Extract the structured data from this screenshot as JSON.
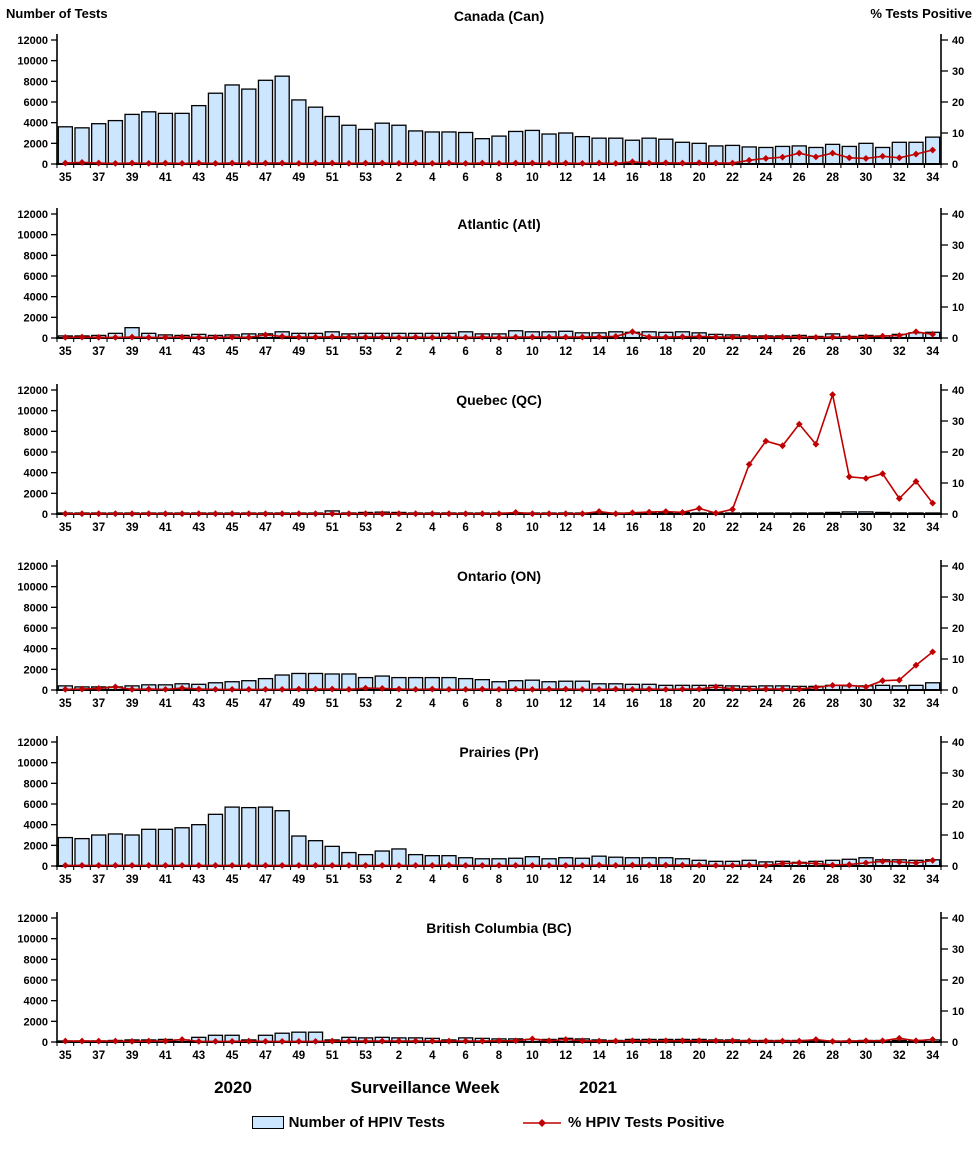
{
  "header": {
    "left_axis_label": "Number of Tests",
    "right_axis_label": "%  Tests Positive"
  },
  "footer": {
    "year_left": "2020",
    "xaxis_label": "Surveillance Week",
    "year_right": "2021"
  },
  "legend": {
    "bars_label": "Number of HPIV Tests",
    "line_label": "% HPIV Tests Positive"
  },
  "colors": {
    "bar_fill": "#CCE6FF",
    "bar_stroke": "#000000",
    "line_color": "#C00000"
  },
  "chart_data": {
    "type": "bar",
    "subtype": "dual-axis bar+line small multiples",
    "title": "HPIV tests and percent positive by surveillance week, Canada and regions, 2020-2021",
    "xlabel": "Surveillance Week",
    "ylabel_left": "Number of Tests",
    "ylabel_right": "% Tests Positive",
    "grid": false,
    "legend_position": "bottom",
    "left_axis": {
      "min": 0,
      "max": 12000,
      "step": 2000,
      "ticks": [
        0,
        2000,
        4000,
        6000,
        8000,
        10000,
        12000
      ]
    },
    "right_axis": {
      "min": 0,
      "max": 40,
      "step": 10,
      "ticks": [
        0,
        10,
        20,
        30,
        40
      ]
    },
    "x_categories": [
      "35",
      "36",
      "37",
      "38",
      "39",
      "40",
      "41",
      "42",
      "43",
      "44",
      "45",
      "46",
      "47",
      "48",
      "49",
      "50",
      "51",
      "52",
      "53",
      "1",
      "2",
      "3",
      "4",
      "5",
      "6",
      "7",
      "8",
      "9",
      "10",
      "11",
      "12",
      "13",
      "14",
      "15",
      "16",
      "17",
      "18",
      "19",
      "20",
      "21",
      "22",
      "23",
      "24",
      "25",
      "26",
      "27",
      "28",
      "29",
      "30",
      "31",
      "32",
      "33",
      "34"
    ],
    "x_tick_labels_shown": [
      "35",
      "37",
      "39",
      "41",
      "43",
      "45",
      "47",
      "49",
      "51",
      "53",
      "2",
      "4",
      "6",
      "8",
      "10",
      "12",
      "14",
      "16",
      "18",
      "20",
      "22",
      "24",
      "26",
      "28",
      "30",
      "32",
      "34"
    ],
    "panels": [
      {
        "title": "Canada (Can)",
        "tests": [
          3600,
          3500,
          3900,
          4200,
          4800,
          5050,
          4900,
          4900,
          5650,
          6850,
          7650,
          7250,
          8100,
          8500,
          6200,
          5500,
          4600,
          3750,
          3350,
          3950,
          3750,
          3200,
          3100,
          3100,
          3050,
          2450,
          2700,
          3150,
          3250,
          2900,
          3000,
          2650,
          2500,
          2500,
          2300,
          2500,
          2400,
          2100,
          2000,
          1750,
          1800,
          1650,
          1600,
          1700,
          1750,
          1600,
          1900,
          1700,
          2000,
          1600,
          2100,
          2100,
          2600
        ],
        "pct_positive": [
          0.3,
          0.5,
          0.3,
          0.2,
          0.3,
          0.2,
          0.3,
          0.2,
          0.3,
          0.2,
          0.3,
          0.2,
          0.3,
          0.3,
          0.2,
          0.3,
          0.3,
          0.2,
          0.3,
          0.3,
          0.2,
          0.3,
          0.2,
          0.3,
          0.2,
          0.3,
          0.2,
          0.3,
          0.3,
          0.2,
          0.3,
          0.2,
          0.3,
          0.2,
          0.7,
          0.3,
          0.4,
          0.3,
          0.4,
          0.3,
          0.3,
          1.2,
          1.8,
          2.2,
          3.5,
          2.3,
          3.5,
          2.0,
          1.8,
          2.5,
          2.0,
          3.2,
          4.5
        ]
      },
      {
        "title": "Atlantic (Atl)",
        "tests": [
          200,
          200,
          250,
          450,
          1000,
          450,
          300,
          250,
          350,
          250,
          300,
          400,
          400,
          600,
          450,
          450,
          600,
          400,
          450,
          450,
          450,
          450,
          450,
          450,
          600,
          400,
          400,
          700,
          600,
          600,
          650,
          500,
          500,
          600,
          550,
          600,
          550,
          600,
          500,
          350,
          300,
          200,
          200,
          200,
          250,
          150,
          400,
          150,
          250,
          200,
          350,
          500,
          550
        ],
        "pct_positive": [
          0.2,
          0.3,
          0.2,
          0.2,
          0.3,
          0.2,
          0.2,
          0.3,
          0.2,
          0.2,
          0.3,
          0.2,
          1.0,
          0.5,
          0.3,
          0.3,
          0.4,
          0.3,
          0.3,
          0.3,
          0.2,
          0.3,
          0.2,
          0.3,
          0.2,
          0.3,
          0.2,
          0.3,
          0.3,
          0.3,
          0.3,
          0.3,
          0.4,
          0.5,
          2.0,
          0.3,
          0.3,
          0.4,
          0.5,
          0.3,
          0.3,
          0.3,
          0.3,
          0.3,
          0.3,
          0.2,
          0.3,
          0.2,
          0.4,
          0.6,
          0.8,
          2.0,
          1.2
        ]
      },
      {
        "title": "Quebec (QC)",
        "tests": [
          80,
          80,
          80,
          80,
          100,
          80,
          80,
          80,
          100,
          80,
          80,
          80,
          100,
          100,
          80,
          80,
          300,
          100,
          150,
          180,
          150,
          100,
          100,
          100,
          100,
          80,
          80,
          100,
          80,
          80,
          100,
          80,
          100,
          80,
          80,
          100,
          100,
          150,
          100,
          80,
          80,
          80,
          80,
          80,
          80,
          100,
          150,
          200,
          200,
          150,
          100,
          100,
          80
        ],
        "pct_positive": [
          0.1,
          0.1,
          0.1,
          0.1,
          0.1,
          0.1,
          0.1,
          0.1,
          0.1,
          0.1,
          0.1,
          0.1,
          0.1,
          0.1,
          0.1,
          0.1,
          0.1,
          0.1,
          0.1,
          0.1,
          0.1,
          0.1,
          0.1,
          0.1,
          0.1,
          0.1,
          0.1,
          0.5,
          0.1,
          0.1,
          0.1,
          0.1,
          0.8,
          0.1,
          0.4,
          0.6,
          0.8,
          0.5,
          1.8,
          0.3,
          1.5,
          16,
          23.5,
          22,
          29,
          22.5,
          38.5,
          12,
          11.5,
          13,
          5,
          10.5,
          3.5
        ]
      },
      {
        "title": "Ontario (ON)",
        "tests": [
          400,
          300,
          300,
          300,
          400,
          500,
          500,
          600,
          550,
          700,
          800,
          900,
          1100,
          1450,
          1600,
          1600,
          1550,
          1550,
          1200,
          1350,
          1200,
          1200,
          1200,
          1200,
          1100,
          1000,
          800,
          900,
          950,
          800,
          850,
          850,
          600,
          600,
          550,
          550,
          450,
          450,
          450,
          450,
          400,
          350,
          400,
          400,
          350,
          350,
          450,
          400,
          400,
          450,
          400,
          450,
          700
        ],
        "pct_positive": [
          0.2,
          0.3,
          0.5,
          1.0,
          0.2,
          0.3,
          0.2,
          0.6,
          0.3,
          0.2,
          0.2,
          0.2,
          0.2,
          0.2,
          0.3,
          0.3,
          0.3,
          0.2,
          0.6,
          0.5,
          0.3,
          0.2,
          0.3,
          0.2,
          0.2,
          0.3,
          0.2,
          0.3,
          0.2,
          0.3,
          0.3,
          0.2,
          0.2,
          0.3,
          0.2,
          0.3,
          0.2,
          0.3,
          0.3,
          1.0,
          0.4,
          0.3,
          0.3,
          0.3,
          0.3,
          0.8,
          1.5,
          1.5,
          1.0,
          3.0,
          3.2,
          8.0,
          12.3
        ]
      },
      {
        "title": "Prairies (Pr)",
        "tests": [
          2750,
          2650,
          3000,
          3100,
          3000,
          3550,
          3550,
          3700,
          4000,
          5000,
          5700,
          5650,
          5700,
          5350,
          2900,
          2450,
          1900,
          1300,
          1100,
          1450,
          1650,
          1100,
          1000,
          1000,
          800,
          700,
          700,
          750,
          900,
          700,
          800,
          750,
          950,
          850,
          800,
          800,
          800,
          700,
          550,
          450,
          450,
          550,
          400,
          450,
          350,
          450,
          550,
          650,
          800,
          600,
          600,
          550,
          600
        ],
        "pct_positive": [
          0.2,
          0.2,
          0.2,
          0.2,
          0.2,
          0.2,
          0.2,
          0.2,
          0.2,
          0.2,
          0.2,
          0.2,
          0.2,
          0.2,
          0.2,
          0.2,
          0.2,
          0.2,
          0.2,
          0.2,
          0.2,
          0.2,
          0.2,
          0.3,
          0.2,
          0.2,
          0.2,
          0.2,
          0.2,
          0.2,
          0.2,
          0.2,
          0.3,
          0.2,
          0.3,
          0.3,
          0.3,
          0.3,
          0.3,
          0.2,
          0.2,
          0.3,
          0.2,
          0.8,
          1.0,
          0.8,
          0.3,
          0.5,
          1.0,
          1.5,
          1.3,
          1.0,
          1.8
        ]
      },
      {
        "title": "British Columbia (BC)",
        "tests": [
          100,
          100,
          100,
          150,
          200,
          200,
          250,
          200,
          450,
          650,
          650,
          200,
          650,
          850,
          950,
          950,
          200,
          450,
          400,
          450,
          400,
          400,
          350,
          200,
          400,
          350,
          300,
          300,
          250,
          250,
          350,
          300,
          200,
          150,
          250,
          250,
          250,
          250,
          250,
          200,
          200,
          150,
          150,
          150,
          150,
          150,
          100,
          100,
          150,
          150,
          150,
          150,
          200
        ],
        "pct_positive": [
          0.3,
          0.3,
          0.3,
          0.3,
          0.2,
          0.3,
          0.3,
          0.8,
          0.2,
          0.2,
          0.2,
          0.3,
          0.2,
          0.2,
          0.2,
          0.2,
          0.3,
          0.3,
          0.3,
          0.3,
          0.3,
          0.3,
          0.3,
          0.3,
          0.3,
          0.3,
          0.4,
          0.4,
          1.0,
          0.4,
          0.8,
          0.4,
          0.3,
          0.3,
          0.4,
          0.3,
          0.4,
          0.4,
          0.4,
          0.4,
          0.4,
          0.3,
          0.3,
          0.3,
          0.3,
          0.8,
          0.2,
          0.3,
          0.4,
          0.4,
          1.2,
          0.4,
          0.8
        ]
      }
    ]
  }
}
